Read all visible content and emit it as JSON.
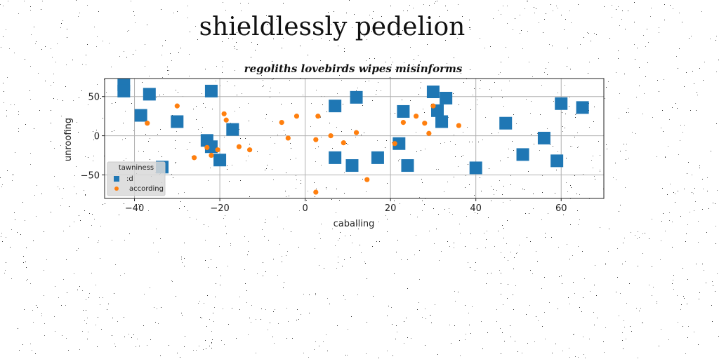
{
  "figure": {
    "title": "shieldlessly pedelion"
  },
  "chart_data": {
    "type": "scatter",
    "title": "regoliths lovebirds wipes misinforms",
    "xlabel": "caballing",
    "ylabel": "unroofing",
    "xlim": [
      -47,
      70
    ],
    "ylim": [
      -80,
      73
    ],
    "xticks": [
      -40,
      -20,
      0,
      20,
      40,
      60
    ],
    "yticks": [
      -50,
      0,
      50
    ],
    "grid": true,
    "legend": {
      "title": "tawniness",
      "placement": "lower-left"
    },
    "series": [
      {
        "name": ":d",
        "marker": "square",
        "color": "#1f77b4",
        "points": [
          [
            -42.5,
            65
          ],
          [
            -42.5,
            57
          ],
          [
            -36.5,
            53
          ],
          [
            -38.5,
            26
          ],
          [
            -30,
            18
          ],
          [
            -33.5,
            -40
          ],
          [
            -22,
            57
          ],
          [
            -23,
            -6
          ],
          [
            -22,
            -14
          ],
          [
            -20,
            -31
          ],
          [
            -17,
            8
          ],
          [
            7,
            38
          ],
          [
            12,
            49
          ],
          [
            7,
            -28
          ],
          [
            11,
            -38
          ],
          [
            17,
            -28
          ],
          [
            23,
            31
          ],
          [
            22,
            -10
          ],
          [
            24,
            -38
          ],
          [
            30,
            56
          ],
          [
            33,
            48
          ],
          [
            31,
            32
          ],
          [
            32,
            18
          ],
          [
            40,
            -41
          ],
          [
            47,
            16
          ],
          [
            51,
            -24
          ],
          [
            56,
            -3
          ],
          [
            59,
            -32
          ],
          [
            60,
            41
          ],
          [
            65,
            36
          ]
        ]
      },
      {
        "name": "according",
        "marker": "circle",
        "color": "#ff7f0e",
        "points": [
          [
            -37,
            16
          ],
          [
            -30,
            38
          ],
          [
            -26,
            -28
          ],
          [
            -23,
            -15
          ],
          [
            -22,
            -25
          ],
          [
            -20.5,
            -18
          ],
          [
            -19,
            28
          ],
          [
            -18.5,
            20
          ],
          [
            -15.5,
            -14
          ],
          [
            -13,
            -18
          ],
          [
            -5.5,
            17
          ],
          [
            -4,
            -3
          ],
          [
            -2,
            25
          ],
          [
            2.5,
            -5
          ],
          [
            3,
            25
          ],
          [
            2.5,
            -72
          ],
          [
            6,
            0
          ],
          [
            9,
            -9
          ],
          [
            12,
            4
          ],
          [
            14.5,
            -56
          ],
          [
            21,
            -10
          ],
          [
            23,
            17
          ],
          [
            26,
            25
          ],
          [
            28,
            16
          ],
          [
            29,
            3
          ],
          [
            30,
            38
          ],
          [
            36,
            13
          ]
        ]
      }
    ]
  }
}
